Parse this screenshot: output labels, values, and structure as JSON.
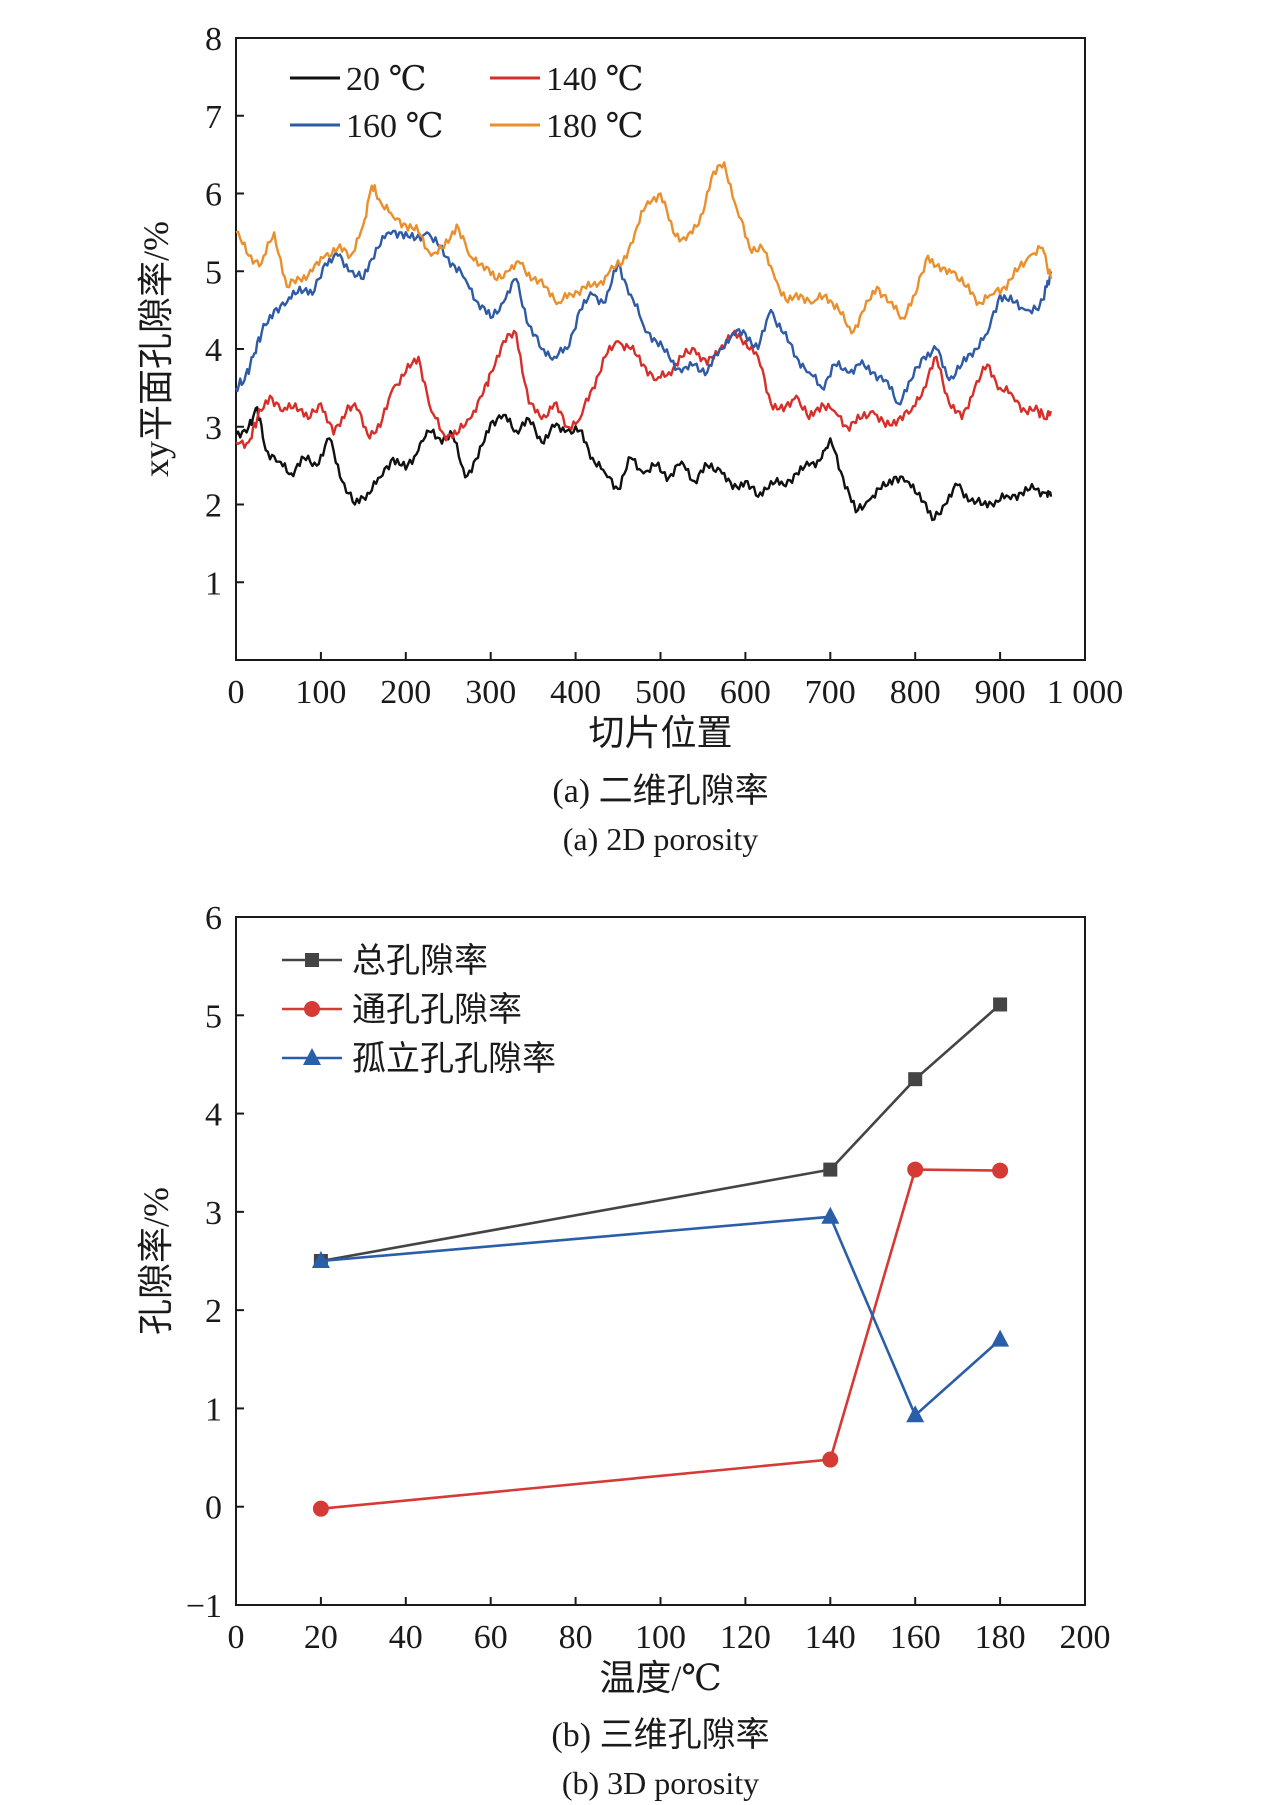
{
  "chart_data": [
    {
      "type": "line",
      "caption_zh": "(a) 二维孔隙率",
      "caption_en": "(a) 2D porosity",
      "xlabel": "切片位置",
      "ylabel": "xy平面孔隙率/%",
      "xlim": [
        0,
        1000
      ],
      "ylim": [
        0,
        8
      ],
      "x_ticks": [
        "0",
        "100",
        "200",
        "300",
        "400",
        "500",
        "600",
        "700",
        "800",
        "900",
        "1 000"
      ],
      "y_ticks": [
        "1",
        "2",
        "3",
        "4",
        "5",
        "6",
        "7",
        "8"
      ],
      "legend_position": "top-left",
      "series": [
        {
          "name": "20 ℃",
          "color": "#111111",
          "x": [
            0,
            15,
            25,
            35,
            50,
            65,
            80,
            95,
            110,
            125,
            140,
            155,
            170,
            185,
            200,
            215,
            225,
            240,
            255,
            270,
            285,
            300,
            315,
            330,
            345,
            360,
            375,
            390,
            405,
            420,
            435,
            450,
            465,
            480,
            495,
            510,
            525,
            540,
            555,
            570,
            585,
            600,
            615,
            630,
            645,
            660,
            675,
            690,
            700,
            715,
            730,
            745,
            760,
            775,
            790,
            805,
            820,
            835,
            850,
            865,
            880,
            895,
            910,
            925,
            940,
            955,
            960
          ],
          "y": [
            2.9,
            3.0,
            3.25,
            2.7,
            2.55,
            2.4,
            2.6,
            2.5,
            2.85,
            2.3,
            2.0,
            2.15,
            2.35,
            2.6,
            2.45,
            2.7,
            2.95,
            2.85,
            2.9,
            2.35,
            2.6,
            3.05,
            3.15,
            2.95,
            3.1,
            2.8,
            3.0,
            2.95,
            2.95,
            2.6,
            2.4,
            2.2,
            2.6,
            2.4,
            2.5,
            2.35,
            2.55,
            2.3,
            2.5,
            2.45,
            2.2,
            2.3,
            2.1,
            2.3,
            2.25,
            2.4,
            2.5,
            2.6,
            2.85,
            2.35,
            1.9,
            2.05,
            2.2,
            2.35,
            2.3,
            2.15,
            1.8,
            2.0,
            2.25,
            2.05,
            2.0,
            2.05,
            2.1,
            2.15,
            2.2,
            2.15,
            2.1
          ]
        },
        {
          "name": "140 ℃",
          "color": "#d62f2a",
          "x": [
            0,
            15,
            25,
            40,
            55,
            70,
            85,
            100,
            115,
            130,
            140,
            155,
            170,
            185,
            200,
            215,
            230,
            245,
            260,
            275,
            290,
            300,
            315,
            330,
            345,
            360,
            375,
            390,
            405,
            420,
            435,
            450,
            465,
            480,
            495,
            510,
            525,
            540,
            555,
            570,
            585,
            600,
            615,
            630,
            645,
            660,
            675,
            690,
            705,
            720,
            735,
            750,
            765,
            780,
            795,
            810,
            825,
            840,
            855,
            870,
            885,
            900,
            915,
            930,
            945,
            955,
            960
          ],
          "y": [
            2.8,
            2.8,
            3.1,
            3.4,
            3.2,
            3.3,
            3.1,
            3.3,
            2.9,
            3.2,
            3.3,
            2.9,
            3.0,
            3.5,
            3.7,
            3.9,
            3.2,
            2.9,
            2.9,
            3.1,
            3.4,
            3.7,
            4.1,
            4.2,
            3.3,
            3.1,
            3.3,
            3.0,
            3.1,
            3.5,
            3.9,
            4.1,
            4.0,
            3.8,
            3.6,
            3.7,
            3.9,
            4.0,
            3.8,
            4.0,
            4.2,
            4.1,
            3.9,
            3.3,
            3.2,
            3.4,
            3.1,
            3.3,
            3.2,
            3.0,
            3.1,
            3.2,
            3.0,
            3.1,
            3.2,
            3.5,
            3.9,
            3.3,
            3.1,
            3.5,
            3.8,
            3.5,
            3.4,
            3.2,
            3.2,
            3.1,
            3.2
          ]
        },
        {
          "name": "160 ℃",
          "color": "#2f5aa6",
          "x": [
            0,
            10,
            20,
            30,
            45,
            60,
            75,
            90,
            105,
            120,
            135,
            150,
            165,
            180,
            195,
            210,
            225,
            240,
            255,
            270,
            285,
            300,
            315,
            330,
            345,
            360,
            375,
            390,
            405,
            420,
            435,
            450,
            465,
            480,
            495,
            510,
            525,
            540,
            555,
            570,
            585,
            600,
            615,
            630,
            645,
            660,
            675,
            690,
            705,
            720,
            735,
            750,
            765,
            780,
            795,
            810,
            825,
            840,
            855,
            870,
            885,
            900,
            915,
            930,
            945,
            955,
            960
          ],
          "y": [
            3.5,
            3.6,
            3.9,
            4.2,
            4.5,
            4.6,
            4.8,
            4.7,
            5.1,
            5.2,
            5.0,
            4.9,
            5.3,
            5.5,
            5.5,
            5.4,
            5.5,
            5.3,
            5.1,
            4.9,
            4.6,
            4.4,
            4.6,
            4.9,
            4.3,
            4.0,
            3.9,
            4.0,
            4.5,
            4.7,
            4.6,
            5.1,
            4.7,
            4.3,
            4.1,
            3.9,
            3.7,
            3.8,
            3.7,
            4.0,
            4.2,
            4.2,
            4.0,
            4.5,
            4.2,
            3.9,
            3.7,
            3.5,
            3.8,
            3.7,
            3.8,
            3.7,
            3.6,
            3.3,
            3.6,
            3.9,
            4.0,
            3.6,
            3.8,
            4.0,
            4.2,
            4.7,
            4.6,
            4.5,
            4.5,
            4.8,
            5.0
          ]
        },
        {
          "name": "180 ℃",
          "color": "#ea8f2d",
          "x": [
            0,
            15,
            30,
            45,
            60,
            75,
            90,
            105,
            120,
            135,
            150,
            160,
            170,
            185,
            200,
            215,
            230,
            245,
            260,
            275,
            290,
            305,
            320,
            335,
            350,
            365,
            380,
            395,
            410,
            425,
            440,
            455,
            470,
            485,
            500,
            515,
            530,
            545,
            560,
            575,
            590,
            605,
            620,
            635,
            650,
            665,
            680,
            695,
            710,
            725,
            740,
            755,
            770,
            785,
            800,
            815,
            830,
            845,
            860,
            875,
            890,
            905,
            920,
            935,
            950,
            960
          ],
          "y": [
            5.5,
            5.2,
            5.1,
            5.5,
            4.8,
            4.9,
            5.0,
            5.2,
            5.3,
            5.2,
            5.6,
            6.1,
            5.9,
            5.7,
            5.6,
            5.5,
            5.2,
            5.3,
            5.6,
            5.2,
            5.1,
            4.9,
            5.0,
            5.1,
            4.9,
            4.8,
            4.6,
            4.7,
            4.8,
            4.8,
            5.0,
            5.1,
            5.5,
            5.9,
            6.0,
            5.5,
            5.4,
            5.6,
            6.2,
            6.4,
            5.8,
            5.3,
            5.3,
            4.9,
            4.6,
            4.7,
            4.6,
            4.7,
            4.5,
            4.2,
            4.5,
            4.8,
            4.6,
            4.4,
            4.7,
            5.2,
            5.0,
            5.0,
            4.8,
            4.6,
            4.7,
            4.8,
            5.0,
            5.2,
            5.3,
            4.9
          ]
        }
      ]
    },
    {
      "type": "line",
      "caption_zh": "(b) 三维孔隙率",
      "caption_en": "(b) 3D porosity",
      "xlabel": "温度/℃",
      "ylabel": "孔隙率/%",
      "xlim": [
        0,
        200
      ],
      "ylim": [
        -1,
        6
      ],
      "x_ticks": [
        "0",
        "20",
        "40",
        "60",
        "80",
        "100",
        "120",
        "140",
        "160",
        "180",
        "200"
      ],
      "y_ticks": [
        "−1",
        "0",
        "1",
        "2",
        "3",
        "4",
        "5",
        "6"
      ],
      "legend_position": "top-left",
      "categories_x": [
        20,
        140,
        160,
        180
      ],
      "series": [
        {
          "name": "总孔隙率",
          "color": "#444444",
          "marker": "square",
          "values": [
            2.5,
            3.43,
            4.35,
            5.11
          ]
        },
        {
          "name": "通孔孔隙率",
          "color": "#d63a35",
          "marker": "circle",
          "values": [
            -0.02,
            0.48,
            3.43,
            3.42
          ]
        },
        {
          "name": "孤立孔孔隙率",
          "color": "#2a5ea8",
          "marker": "triangle",
          "values": [
            2.5,
            2.95,
            0.93,
            1.7
          ]
        }
      ]
    }
  ]
}
